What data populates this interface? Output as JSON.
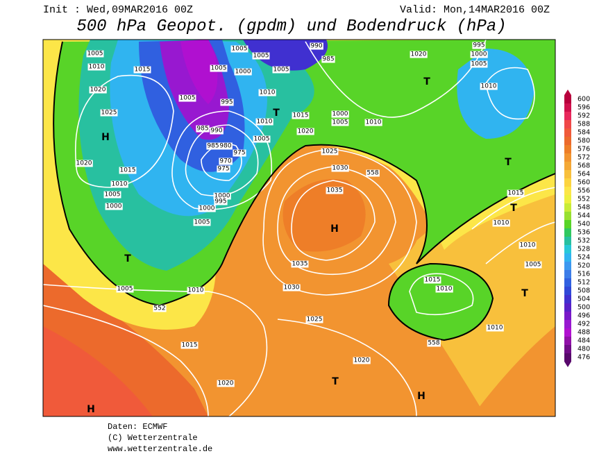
{
  "header": {
    "init": "Init : Wed,09MAR2016 00Z",
    "valid": "Valid: Mon,14MAR2016 00Z",
    "title": "500 hPa Geopot. (gpdm) und Bodendruck (hPa)"
  },
  "legend": {
    "levels": [
      600,
      596,
      592,
      588,
      584,
      580,
      576,
      572,
      568,
      564,
      560,
      556,
      552,
      548,
      544,
      540,
      536,
      532,
      528,
      524,
      520,
      516,
      512,
      508,
      504,
      500,
      496,
      492,
      488,
      484,
      480,
      476
    ],
    "colors": [
      "#b8003c",
      "#d0104c",
      "#e8285c",
      "#f04848",
      "#f05a3a",
      "#ec6a2c",
      "#ee7e28",
      "#f29430",
      "#f4a836",
      "#f8c03c",
      "#fcd440",
      "#fce648",
      "#eef040",
      "#c8ec38",
      "#98e030",
      "#58d428",
      "#30c860",
      "#28c0a0",
      "#28c8d8",
      "#30b4f0",
      "#3c98f0",
      "#3c7ce8",
      "#3060e0",
      "#3048d8",
      "#4030d0",
      "#5820c8",
      "#7818c8",
      "#9818d0",
      "#b010d0",
      "#9010a8",
      "#700c88",
      "#58086c"
    ]
  },
  "map": {
    "labels": [
      "1005",
      "1010",
      "1015",
      "1020",
      "1025",
      "H",
      "1020",
      "1015",
      "1010",
      "1005",
      "1000",
      "T",
      "1005",
      "1010",
      "552",
      "1015",
      "1020",
      "H",
      "1005",
      "1005",
      "995",
      "985",
      "990",
      "985",
      "980",
      "975",
      "970",
      "975",
      "1000",
      "995",
      "1000",
      "1005",
      "1005",
      "1005",
      "1000",
      "1005",
      "1010",
      "1010",
      "1005",
      "T",
      "990",
      "985",
      "1015",
      "1020",
      "1025",
      "1030",
      "1035",
      "H",
      "1035",
      "1030",
      "1025",
      "1020",
      "T",
      "1000",
      "1005",
      "1010",
      "558",
      "1020",
      "995",
      "1000",
      "1005",
      "T",
      "1010",
      "T",
      "1015",
      "T",
      "1010",
      "1010",
      "1005",
      "T",
      "1015",
      "1010",
      "1010",
      "558",
      "H"
    ]
  },
  "footer": {
    "source": "Daten: ECMWF",
    "copyright": "(C) Wetterzentrale",
    "url": "www.wetterzentrale.de"
  }
}
